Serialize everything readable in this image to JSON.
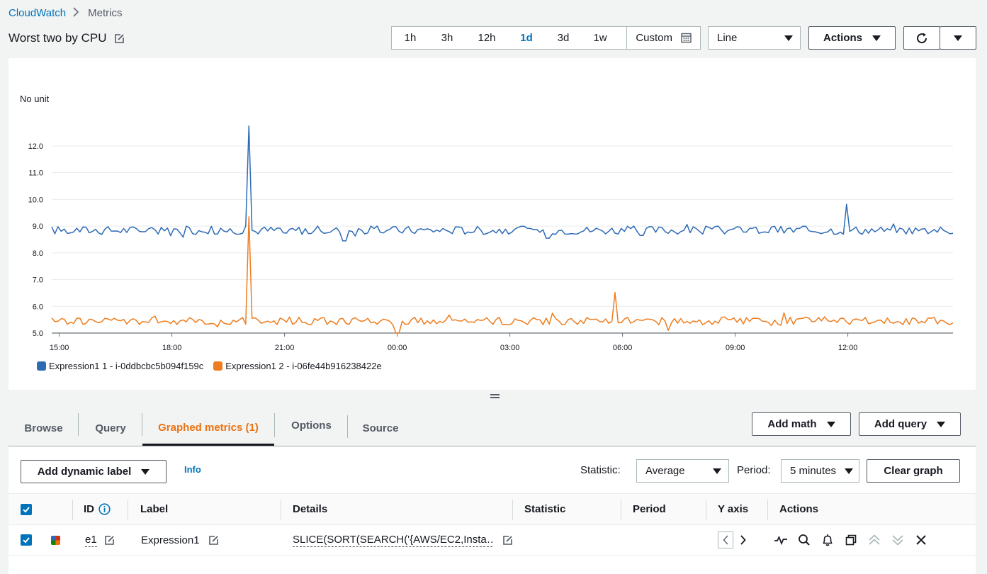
{
  "breadcrumb": {
    "root": "CloudWatch",
    "current": "Metrics"
  },
  "title": "Worst two by CPU",
  "time_ranges": [
    {
      "label": "1h",
      "active": false
    },
    {
      "label": "3h",
      "active": false
    },
    {
      "label": "12h",
      "active": false
    },
    {
      "label": "1d",
      "active": true
    },
    {
      "label": "3d",
      "active": false
    },
    {
      "label": "1w",
      "active": false
    }
  ],
  "custom_label": "Custom",
  "graph_type": "Line",
  "actions_label": "Actions",
  "colors": {
    "blue": "#2e6bb5",
    "orange": "#ed7d1f",
    "accent": "#0073bb",
    "active_tab": "#ec7211"
  },
  "chart_data": {
    "type": "line",
    "unit_label": "No unit",
    "y_ticks": [
      "5.0",
      "6.0",
      "7.0",
      "8.0",
      "9.0",
      "10.0",
      "11.0",
      "12.0"
    ],
    "ylim": [
      5.0,
      12.9
    ],
    "x_ticks": [
      "15:00",
      "18:00",
      "21:00",
      "00:00",
      "03:00",
      "06:00",
      "09:00",
      "12:00"
    ],
    "x_start_hour": 14.8,
    "x_end_hour": 38.8,
    "tick_hours": [
      15,
      18,
      21,
      24,
      27,
      30,
      33,
      36
    ],
    "grid": true,
    "series": [
      {
        "name": "Expression1 1 - i-0ddbcbc5b094f159c",
        "color": "#2e6bb5",
        "baseline": 8.85,
        "noise": 0.16,
        "spikes": [
          [
            20.02,
            12.75
          ],
          [
            36.0,
            9.82
          ],
          [
            21.0,
            8.75
          ],
          [
            20.2,
            8.8
          ]
        ],
        "dips": [
          [
            22.6,
            8.45
          ],
          [
            28.0,
            8.55
          ],
          [
            30.5,
            8.65
          ]
        ]
      },
      {
        "name": "Expression1 2 - i-06fe44b916238422e",
        "color": "#ed7d1f",
        "baseline": 5.45,
        "noise": 0.14,
        "spikes": [
          [
            20.02,
            9.35
          ],
          [
            29.8,
            6.52
          ]
        ],
        "dips": [
          [
            24.0,
            5.0
          ],
          [
            31.2,
            5.1
          ]
        ]
      }
    ]
  },
  "tabs": [
    {
      "label": "Browse",
      "active": false
    },
    {
      "label": "Query",
      "active": false
    },
    {
      "label": "Graphed metrics (1)",
      "active": true
    },
    {
      "label": "Options",
      "active": false
    },
    {
      "label": "Source",
      "active": false
    }
  ],
  "add_math_label": "Add math",
  "add_query_label": "Add query",
  "add_dynamic_label": "Add dynamic label",
  "info_label": "Info",
  "statistic_label": "Statistic:",
  "statistic_value": "Average",
  "period_label": "Period:",
  "period_value": "5 minutes",
  "clear_graph_label": "Clear graph",
  "table": {
    "headers": {
      "id": "ID",
      "label": "Label",
      "details": "Details",
      "statistic": "Statistic",
      "period": "Period",
      "yaxis": "Y axis",
      "actions": "Actions"
    },
    "rows": [
      {
        "id": "e1",
        "label": "Expression1",
        "details": "SLICE(SORT(SEARCH('{AWS/EC2,Insta…"
      }
    ]
  }
}
